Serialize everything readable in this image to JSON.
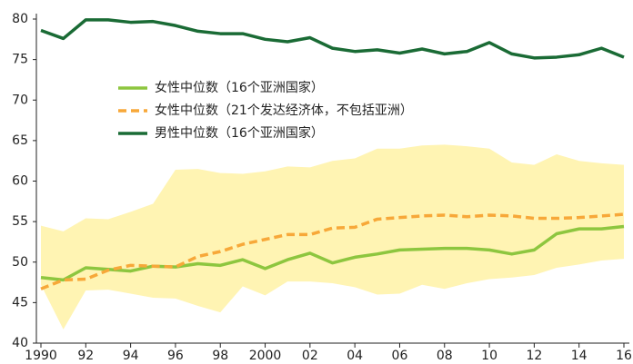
{
  "chart_data": {
    "type": "line",
    "x": [
      1990,
      1991,
      1992,
      1993,
      1994,
      1995,
      1996,
      1997,
      1998,
      1999,
      2000,
      2001,
      2002,
      2003,
      2004,
      2005,
      2006,
      2007,
      2008,
      2009,
      2010,
      2011,
      2012,
      2013,
      2014,
      2015,
      2016
    ],
    "series": [
      {
        "name": "女性中位数（16个亚洲国家）",
        "color": "#8dc63f",
        "dash": false,
        "values": [
          48.1,
          47.8,
          49.3,
          49.1,
          48.9,
          49.5,
          49.4,
          49.8,
          49.6,
          50.3,
          49.2,
          50.3,
          51.1,
          49.9,
          50.6,
          51.0,
          51.5,
          51.6,
          51.7,
          51.7,
          51.5,
          51.0,
          51.5,
          53.5,
          54.1,
          54.1,
          54.4
        ]
      },
      {
        "name": "女性中位数（21个发达经济体，不包括亚洲）",
        "color": "#f7a839",
        "dash": true,
        "values": [
          46.7,
          47.8,
          47.9,
          49.0,
          49.6,
          49.5,
          49.4,
          50.7,
          51.3,
          52.2,
          52.8,
          53.4,
          53.4,
          54.2,
          54.3,
          55.3,
          55.5,
          55.7,
          55.8,
          55.6,
          55.8,
          55.7,
          55.4,
          55.4,
          55.5,
          55.7,
          55.9
        ]
      },
      {
        "name": "男性中位数（16个亚洲国家）",
        "color": "#1a6b35",
        "dash": false,
        "values": [
          78.6,
          77.6,
          79.9,
          79.9,
          79.6,
          79.7,
          79.2,
          78.5,
          78.2,
          78.2,
          77.5,
          77.2,
          77.7,
          76.4,
          76.0,
          76.2,
          75.8,
          76.3,
          75.7,
          76.0,
          77.1,
          75.7,
          75.2,
          75.3,
          75.6,
          76.4,
          75.3
        ]
      }
    ],
    "band": {
      "color": "#fff4b3",
      "upper": [
        54.5,
        53.8,
        55.4,
        55.3,
        56.2,
        57.2,
        61.4,
        61.5,
        61.0,
        60.9,
        61.2,
        61.8,
        61.7,
        62.5,
        62.8,
        64.0,
        64.0,
        64.4,
        64.5,
        64.3,
        64.0,
        62.3,
        62.0,
        63.3,
        62.5,
        62.2,
        62.0
      ],
      "lower": [
        47.2,
        41.7,
        46.5,
        46.6,
        46.1,
        45.6,
        45.5,
        44.6,
        43.8,
        47.0,
        45.9,
        47.6,
        47.6,
        47.4,
        46.9,
        46.0,
        46.1,
        47.2,
        46.7,
        47.4,
        47.9,
        48.1,
        48.4,
        49.3,
        49.7,
        50.2,
        50.4
      ]
    },
    "xlim": [
      1990,
      2016
    ],
    "xticks": [
      1990,
      {
        "value": 1992,
        "label": "92"
      },
      {
        "value": 1994,
        "label": "94"
      },
      {
        "value": 1996,
        "label": "96"
      },
      {
        "value": 1998,
        "label": "98"
      },
      2000,
      {
        "value": 2002,
        "label": "02"
      },
      {
        "value": 2004,
        "label": "04"
      },
      {
        "value": 2006,
        "label": "06"
      },
      {
        "value": 2008,
        "label": "08"
      },
      {
        "value": 2010,
        "label": "10"
      },
      {
        "value": 2012,
        "label": "12"
      },
      {
        "value": 2014,
        "label": "14"
      },
      {
        "value": 2016,
        "label": "16"
      }
    ],
    "ylim": [
      40,
      80
    ],
    "yticks": [
      40,
      45,
      50,
      55,
      60,
      65,
      70,
      75,
      80
    ],
    "grid": false,
    "legend": "center left"
  }
}
